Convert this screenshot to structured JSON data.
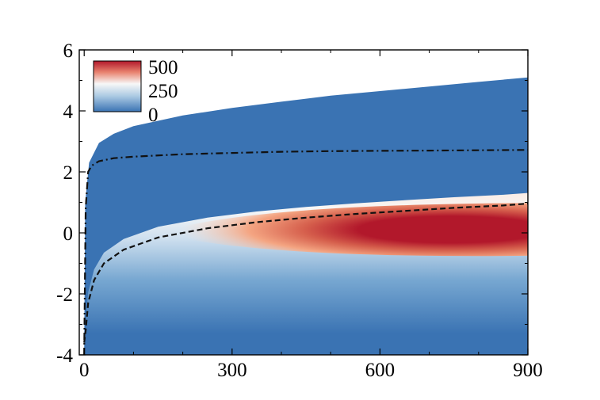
{
  "chart_data": {
    "type": "heatmap",
    "title": "",
    "xlabel": "",
    "ylabel": "",
    "xlim": [
      -10,
      900
    ],
    "ylim": [
      -4,
      6
    ],
    "x_ticks": [
      "0",
      "300",
      "600",
      "900"
    ],
    "y_ticks": [
      "-4",
      "-2",
      "0",
      "2",
      "4",
      "6"
    ],
    "colorbar": {
      "labels": [
        "500",
        "250",
        "0"
      ],
      "range": [
        0,
        500
      ],
      "colors": {
        "low": "#3a73b3",
        "mid": "#f7f7f7",
        "high": "#b2182b"
      }
    },
    "domain_upper_boundary": {
      "x": [
        0,
        2,
        10,
        30,
        60,
        100,
        200,
        300,
        400,
        500,
        600,
        700,
        800,
        900
      ],
      "y": [
        -4,
        1.0,
        2.3,
        2.95,
        3.25,
        3.5,
        3.85,
        4.1,
        4.3,
        4.5,
        4.65,
        4.8,
        4.95,
        5.1
      ]
    },
    "peak_region": {
      "x_range": [
        500,
        900
      ],
      "y_center": 0.1,
      "value": 500
    },
    "series": [
      {
        "style": "dash-dot",
        "x": [
          0,
          3,
          8,
          15,
          30,
          60,
          100,
          200,
          300,
          400,
          500,
          600,
          700,
          800,
          900
        ],
        "y": [
          -4,
          0.8,
          2.0,
          2.2,
          2.35,
          2.45,
          2.5,
          2.58,
          2.62,
          2.66,
          2.68,
          2.69,
          2.7,
          2.71,
          2.72
        ]
      },
      {
        "style": "dashed",
        "x": [
          0,
          3,
          8,
          20,
          40,
          80,
          150,
          250,
          350,
          450,
          550,
          650,
          750,
          850,
          900
        ],
        "y": [
          -3.6,
          -3.2,
          -2.3,
          -1.55,
          -1.0,
          -0.55,
          -0.15,
          0.15,
          0.35,
          0.5,
          0.62,
          0.72,
          0.82,
          0.9,
          0.96
        ]
      }
    ]
  }
}
